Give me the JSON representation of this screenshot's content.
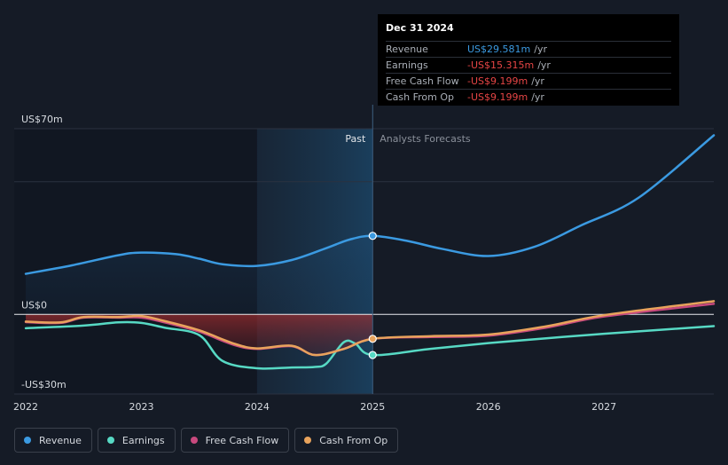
{
  "tooltip": {
    "date": "Dec 31 2024",
    "rows": [
      {
        "label": "Revenue",
        "value": "US$29.581m",
        "unit": "/yr",
        "color": "#3b9ae1"
      },
      {
        "label": "Earnings",
        "value": "-US$15.315m",
        "unit": "/yr",
        "color": "#e64545"
      },
      {
        "label": "Free Cash Flow",
        "value": "-US$9.199m",
        "unit": "/yr",
        "color": "#e64545"
      },
      {
        "label": "Cash From Op",
        "value": "-US$9.199m",
        "unit": "/yr",
        "color": "#e64545"
      }
    ]
  },
  "chart_data": {
    "type": "line",
    "title": "",
    "xlabel": "",
    "ylabel": "",
    "ylim": [
      -30,
      70
    ],
    "xlim": [
      2021.9,
      2027.95
    ],
    "y_tick_labels": [
      {
        "value": 70,
        "label": "US$70m"
      },
      {
        "value": 0,
        "label": "US$0"
      },
      {
        "value": -30,
        "label": "-US$30m"
      }
    ],
    "x_tick_labels": [
      {
        "value": 2022,
        "label": "2022"
      },
      {
        "value": 2023,
        "label": "2023"
      },
      {
        "value": 2024,
        "label": "2024"
      },
      {
        "value": 2025,
        "label": "2025"
      },
      {
        "value": 2026,
        "label": "2026"
      },
      {
        "value": 2027,
        "label": "2027"
      }
    ],
    "past_label": "Past",
    "forecast_label": "Analysts Forecasts",
    "past_range": [
      2024.0,
      2025.0
    ],
    "divider_x": 2025.0,
    "series": [
      {
        "name": "Revenue",
        "color": "#3b9ae1",
        "points": [
          [
            2022.0,
            15.3
          ],
          [
            2022.4,
            18.5
          ],
          [
            2022.8,
            22.3
          ],
          [
            2023.0,
            23.3
          ],
          [
            2023.3,
            22.7
          ],
          [
            2023.5,
            21.0
          ],
          [
            2023.7,
            18.9
          ],
          [
            2024.0,
            18.3
          ],
          [
            2024.3,
            20.5
          ],
          [
            2024.6,
            25.0
          ],
          [
            2024.8,
            28.2
          ],
          [
            2025.0,
            29.6
          ],
          [
            2025.3,
            27.7
          ],
          [
            2025.6,
            24.7
          ],
          [
            2026.0,
            22.0
          ],
          [
            2026.4,
            25.5
          ],
          [
            2026.8,
            33.5
          ],
          [
            2027.3,
            44.0
          ],
          [
            2027.95,
            67.5
          ]
        ]
      },
      {
        "name": "Earnings",
        "color": "#57d9c4",
        "points": [
          [
            2022.0,
            -5.2
          ],
          [
            2022.5,
            -4.2
          ],
          [
            2022.8,
            -3.0
          ],
          [
            2023.0,
            -3.2
          ],
          [
            2023.2,
            -5.0
          ],
          [
            2023.5,
            -7.8
          ],
          [
            2023.7,
            -17.5
          ],
          [
            2024.0,
            -20.3
          ],
          [
            2024.3,
            -20.0
          ],
          [
            2024.5,
            -19.8
          ],
          [
            2024.6,
            -18.5
          ],
          [
            2024.75,
            -10.5
          ],
          [
            2024.85,
            -11.0
          ],
          [
            2025.0,
            -15.3
          ],
          [
            2025.5,
            -13.0
          ],
          [
            2026.0,
            -10.8
          ],
          [
            2026.5,
            -9.0
          ],
          [
            2027.0,
            -7.3
          ],
          [
            2027.95,
            -4.4
          ]
        ]
      },
      {
        "name": "Free Cash Flow",
        "color": "#c8497e",
        "points": [
          [
            2022.0,
            -2.9
          ],
          [
            2022.3,
            -3.2
          ],
          [
            2022.5,
            -1.2
          ],
          [
            2022.8,
            -1.2
          ],
          [
            2023.0,
            -1.2
          ],
          [
            2023.2,
            -3.0
          ],
          [
            2023.5,
            -6.5
          ],
          [
            2023.8,
            -11.5
          ],
          [
            2024.0,
            -13.0
          ],
          [
            2024.3,
            -12.0
          ],
          [
            2024.5,
            -15.3
          ],
          [
            2024.75,
            -13.0
          ],
          [
            2025.0,
            -9.2
          ],
          [
            2025.5,
            -8.5
          ],
          [
            2026.0,
            -8.0
          ],
          [
            2026.5,
            -5.0
          ],
          [
            2027.0,
            -0.8
          ],
          [
            2027.95,
            4.0
          ]
        ]
      },
      {
        "name": "Cash From Op",
        "color": "#e8a35c",
        "points": [
          [
            2022.0,
            -2.7
          ],
          [
            2022.3,
            -3.0
          ],
          [
            2022.5,
            -1.0
          ],
          [
            2022.8,
            -1.0
          ],
          [
            2023.0,
            -0.6
          ],
          [
            2023.2,
            -2.5
          ],
          [
            2023.5,
            -6.0
          ],
          [
            2023.8,
            -11.0
          ],
          [
            2024.0,
            -12.8
          ],
          [
            2024.3,
            -11.8
          ],
          [
            2024.5,
            -15.3
          ],
          [
            2024.75,
            -13.0
          ],
          [
            2025.0,
            -9.2
          ],
          [
            2025.5,
            -8.2
          ],
          [
            2026.0,
            -7.6
          ],
          [
            2026.5,
            -4.5
          ],
          [
            2027.0,
            -0.3
          ],
          [
            2027.95,
            5.0
          ]
        ]
      }
    ],
    "highlight_points": [
      {
        "series": "Revenue",
        "x": 2025.0,
        "y": 29.6
      },
      {
        "series": "Earnings",
        "x": 2025.0,
        "y": -15.3
      },
      {
        "series": "Cash From Op",
        "x": 2025.0,
        "y": -9.2
      }
    ]
  },
  "legend": [
    {
      "label": "Revenue",
      "color": "#3b9ae1"
    },
    {
      "label": "Earnings",
      "color": "#57d9c4"
    },
    {
      "label": "Free Cash Flow",
      "color": "#c8497e"
    },
    {
      "label": "Cash From Op",
      "color": "#e8a35c"
    }
  ]
}
